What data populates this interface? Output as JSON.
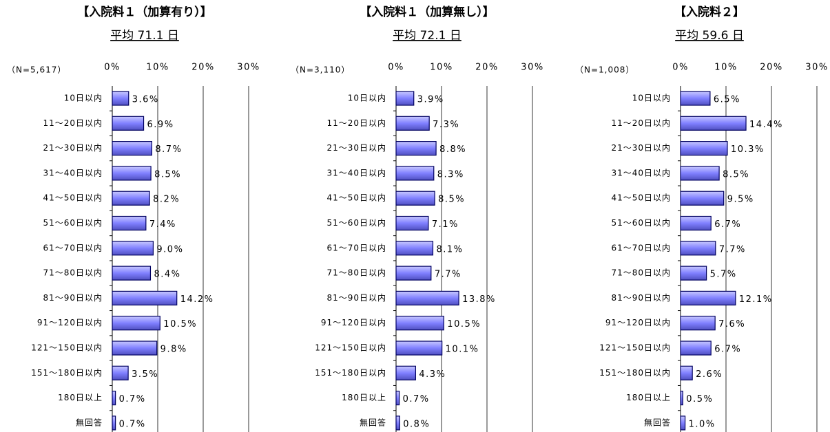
{
  "chart_data": [
    {
      "type": "bar",
      "title": "【入院料１（加算有り）】",
      "subtitle": "平均 71.1 日",
      "note": "（N=5,617）",
      "categories": [
        "10日以内",
        "11～20日以内",
        "21～30日以内",
        "31～40日以内",
        "41～50日以内",
        "51～60日以内",
        "61～70日以内",
        "71～80日以内",
        "81～90日以内",
        "91～120日以内",
        "121～150日以内",
        "151～180日以内",
        "180日以上",
        "無回答"
      ],
      "values": [
        3.6,
        6.9,
        8.7,
        8.5,
        8.2,
        7.4,
        9.0,
        8.4,
        14.2,
        10.5,
        9.8,
        3.5,
        0.7,
        0.7
      ],
      "value_labels": [
        "3.6%",
        "6.9%",
        "8.7%",
        "8.5%",
        "8.2%",
        "7.4%",
        "9.0%",
        "8.4%",
        "14.2%",
        "10.5%",
        "9.8%",
        "3.5%",
        "0.7%",
        "0.7%"
      ],
      "color": "#8080ff",
      "xlim": [
        0,
        30
      ],
      "xticks": [
        {
          "value": 0,
          "label": "0%"
        },
        {
          "value": 10,
          "label": "10%"
        },
        {
          "value": 20,
          "label": "20%"
        },
        {
          "value": 30,
          "label": "30%"
        }
      ],
      "grid": true
    },
    {
      "type": "bar",
      "title": "【入院料１（加算無し）】",
      "subtitle": "平均 72.1 日",
      "note": "（N=3,110）",
      "categories": [
        "10日以内",
        "11～20日以内",
        "21～30日以内",
        "31～40日以内",
        "41～50日以内",
        "51～60日以内",
        "61～70日以内",
        "71～80日以内",
        "81～90日以内",
        "91～120日以内",
        "121～150日以内",
        "151～180日以内",
        "180日以上",
        "無回答"
      ],
      "values": [
        3.9,
        7.3,
        8.8,
        8.3,
        8.5,
        7.1,
        8.1,
        7.7,
        13.8,
        10.5,
        10.1,
        4.3,
        0.7,
        0.8
      ],
      "value_labels": [
        "3.9%",
        "7.3%",
        "8.8%",
        "8.3%",
        "8.5%",
        "7.1%",
        "8.1%",
        "7.7%",
        "13.8%",
        "10.5%",
        "10.1%",
        "4.3%",
        "0.7%",
        "0.8%"
      ],
      "color": "#8080ff",
      "xlim": [
        0,
        30
      ],
      "xticks": [
        {
          "value": 0,
          "label": "0%"
        },
        {
          "value": 10,
          "label": "10%"
        },
        {
          "value": 20,
          "label": "20%"
        },
        {
          "value": 30,
          "label": "30%"
        }
      ],
      "grid": true
    },
    {
      "type": "bar",
      "title": "【入院料２】",
      "subtitle": "平均 59.6 日",
      "note": "（N=1,008）",
      "categories": [
        "10日以内",
        "11～20日以内",
        "21～30日以内",
        "31～40日以内",
        "41～50日以内",
        "51～60日以内",
        "61～70日以内",
        "71～80日以内",
        "81～90日以内",
        "91～120日以内",
        "121～150日以内",
        "151～180日以内",
        "180日以上",
        "無回答"
      ],
      "values": [
        6.5,
        14.4,
        10.3,
        8.5,
        9.5,
        6.7,
        7.7,
        5.7,
        12.1,
        7.6,
        6.7,
        2.6,
        0.5,
        1.0
      ],
      "value_labels": [
        "6.5%",
        "14.4%",
        "10.3%",
        "8.5%",
        "9.5%",
        "6.7%",
        "7.7%",
        "5.7%",
        "12.1%",
        "7.6%",
        "6.7%",
        "2.6%",
        "0.5%",
        "1.0%"
      ],
      "color": "#8080ff",
      "xlim": [
        0,
        30
      ],
      "xticks": [
        {
          "value": 0,
          "label": "0%"
        },
        {
          "value": 10,
          "label": "10%"
        },
        {
          "value": 20,
          "label": "20%"
        },
        {
          "value": 30,
          "label": "30%"
        }
      ],
      "grid": true
    }
  ]
}
